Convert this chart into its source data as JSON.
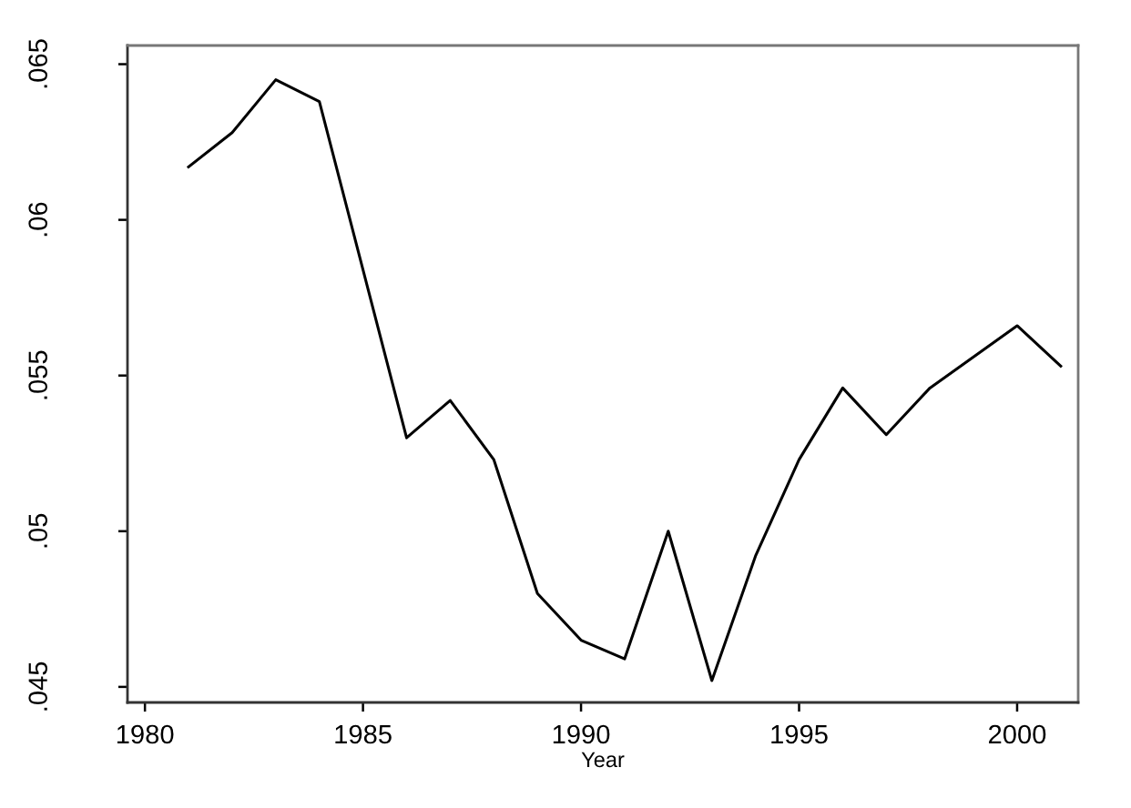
{
  "chart_data": {
    "type": "line",
    "xlabel": "Year",
    "x": [
      1981,
      1982,
      1983,
      1984,
      1985,
      1986,
      1987,
      1988,
      1989,
      1990,
      1991,
      1992,
      1993,
      1994,
      1995,
      1996,
      1997,
      1998,
      1999,
      2000,
      2001
    ],
    "values": [
      0.0617,
      0.0628,
      0.0645,
      0.0638,
      0.0584,
      0.053,
      0.0542,
      0.0523,
      0.048,
      0.0465,
      0.0459,
      0.05,
      0.0452,
      0.0492,
      0.0523,
      0.0546,
      0.0531,
      0.0546,
      0.0556,
      0.0566,
      0.0553
    ],
    "color": "#000000",
    "xlim": [
      1979.6,
      2001.4
    ],
    "ylim": [
      0.0445,
      0.0656
    ],
    "xticks": [
      1980,
      1985,
      1990,
      1995,
      2000
    ],
    "yticks": [
      {
        "value": 0.045,
        "label": ".045"
      },
      {
        "value": 0.05,
        "label": ".05"
      },
      {
        "value": 0.055,
        "label": ".055"
      },
      {
        "value": 0.06,
        "label": ".06"
      },
      {
        "value": 0.065,
        "label": ".065"
      }
    ],
    "grid": false,
    "legend": false,
    "marker": "none",
    "line_style": "solid"
  }
}
